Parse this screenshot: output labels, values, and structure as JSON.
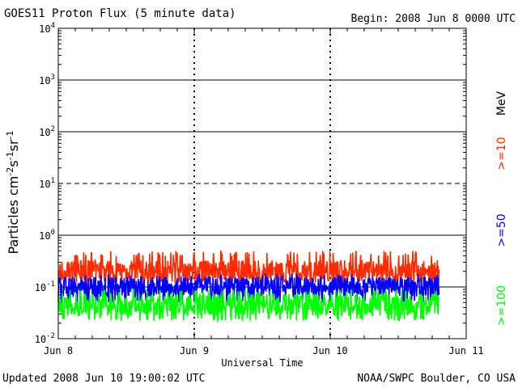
{
  "header": {
    "title": "GOES11 Proton Flux (5 minute data)",
    "begin": "Begin: 2008 Jun 8 0000 UTC"
  },
  "footer": {
    "updated": "Updated 2008 Jun 10 19:00:02 UTC",
    "credit": "NOAA/SWPC Boulder, CO USA"
  },
  "chart_data": {
    "type": "line",
    "title": "GOES11 Proton Flux (5 minute data)",
    "xlabel": "Universal Time",
    "ylabel": "Particles cm-2s-1sr-1",
    "yscale": "log",
    "ylim": [
      0.01,
      10000
    ],
    "xlim_days": [
      0,
      3
    ],
    "x_ticks": [
      "Jun 8",
      "Jun 9",
      "Jun 10",
      "Jun 11"
    ],
    "y_ticks": [
      {
        "base": "10",
        "exp": "-2"
      },
      {
        "base": "10",
        "exp": "-1"
      },
      {
        "base": "10",
        "exp": "0"
      },
      {
        "base": "10",
        "exp": "1"
      },
      {
        "base": "10",
        "exp": "2"
      },
      {
        "base": "10",
        "exp": "3"
      },
      {
        "base": "10",
        "exp": "4"
      }
    ],
    "units_label": "MeV",
    "grid": true,
    "series": [
      {
        "name": ">=10",
        "color": "#ff2a00",
        "level": 0.2,
        "low": 0.12,
        "high": 0.5,
        "data_end_day": 2.8
      },
      {
        "name": ">=50",
        "color": "#0000ff",
        "level": 0.1,
        "low": 0.05,
        "high": 0.18,
        "data_end_day": 2.8
      },
      {
        "name": ">=100",
        "color": "#00ff00",
        "level": 0.045,
        "low": 0.022,
        "high": 0.09,
        "data_end_day": 2.8
      }
    ]
  }
}
